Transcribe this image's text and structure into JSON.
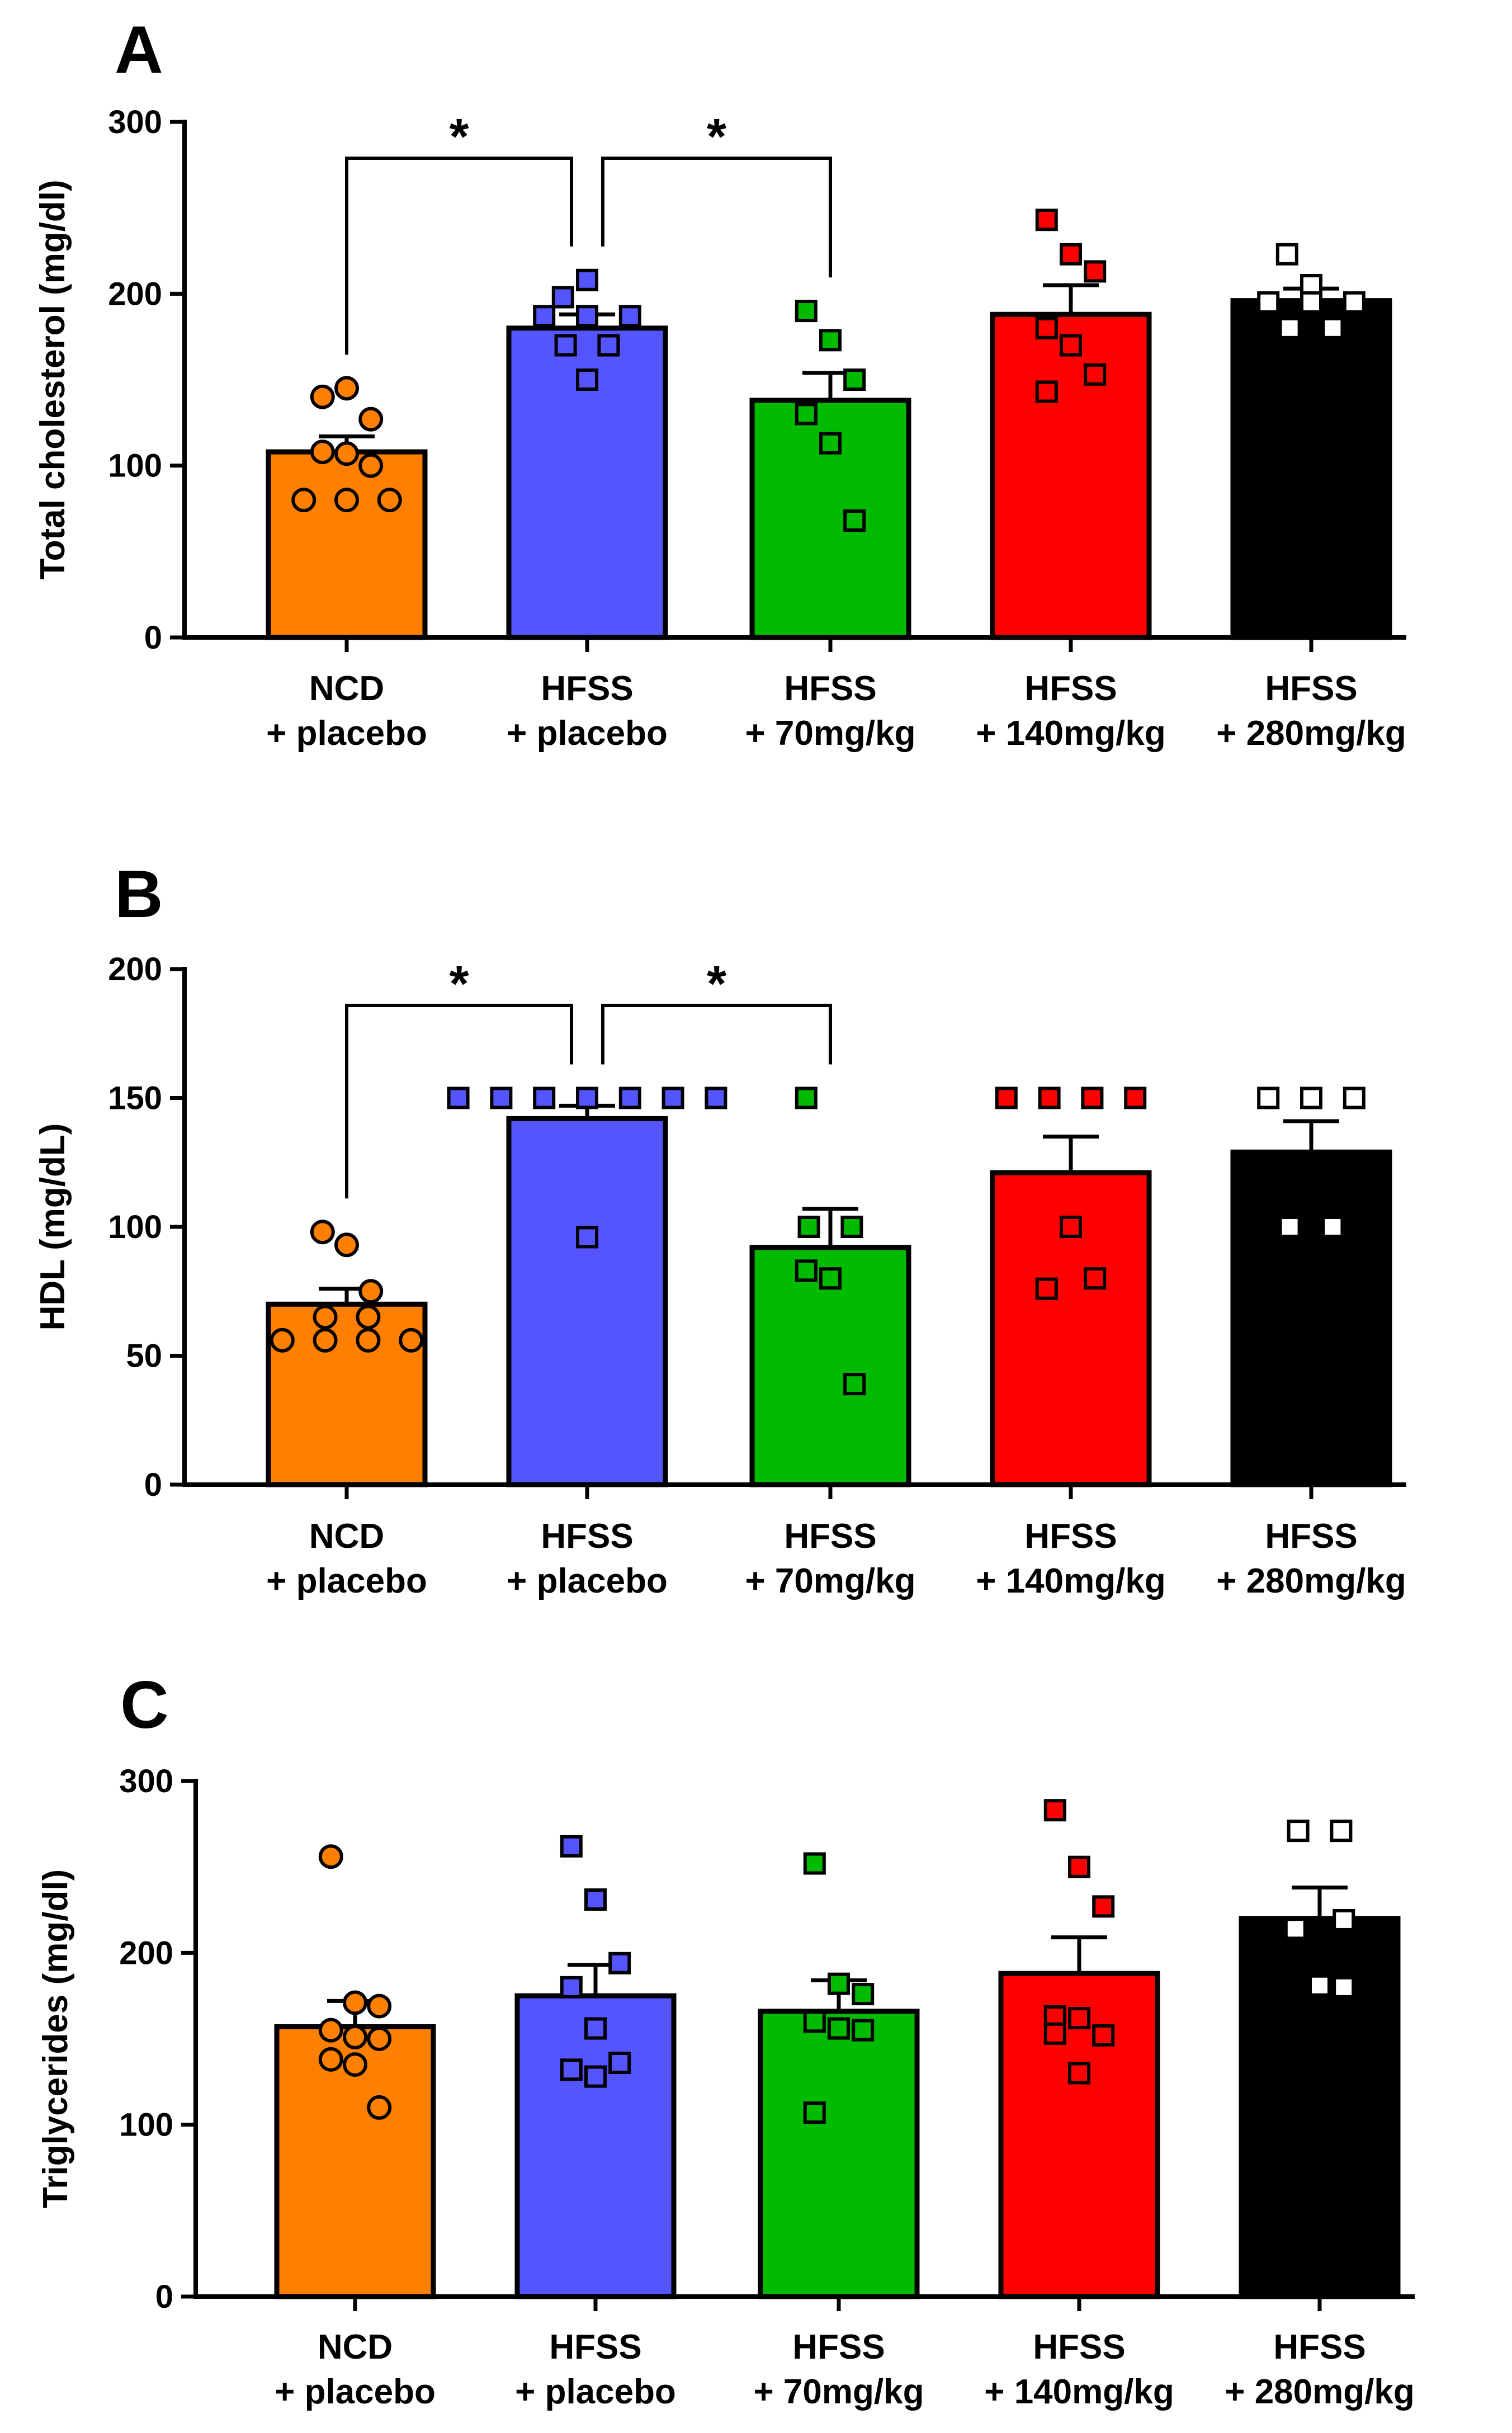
{
  "chart_data": [
    {
      "panel": "A",
      "type": "bar",
      "title": "",
      "ylabel": "Total cholesterol (mg/dl)",
      "xlabel": "",
      "ylim": [
        0,
        300
      ],
      "yticks": [
        "0",
        "100",
        "200",
        "300"
      ],
      "categories": [
        {
          "line1": "NCD",
          "line2": "+ placebo"
        },
        {
          "line1": "HFSS",
          "line2": "+ placebo"
        },
        {
          "line1": "HFSS",
          "line2": "+ 70mg/kg"
        },
        {
          "line1": "HFSS",
          "line2": "+ 140mg/kg"
        },
        {
          "line1": "HFSS",
          "line2": "+ 280mg/kg"
        }
      ],
      "values": [
        108,
        180,
        138,
        188,
        196
      ],
      "sem": [
        9,
        8,
        16,
        17,
        7
      ],
      "points": [
        [
          140,
          145,
          127,
          108,
          107,
          100,
          80,
          80,
          80
        ],
        [
          198,
          208,
          187,
          187,
          187,
          170,
          170,
          150
        ],
        [
          190,
          173,
          150,
          130,
          113,
          68
        ],
        [
          243,
          223,
          213,
          180,
          170,
          153,
          143
        ],
        [
          223,
          205,
          195,
          195,
          195,
          180,
          180
        ]
      ],
      "markers": [
        "circle",
        "square",
        "square",
        "square",
        "square"
      ],
      "significance": [
        {
          "from": 0,
          "to": 1,
          "label": "*"
        },
        {
          "from": 1,
          "to": 2,
          "label": "*"
        }
      ]
    },
    {
      "panel": "B",
      "type": "bar",
      "title": "",
      "ylabel": "HDL (mg/dL)",
      "xlabel": "",
      "ylim": [
        0,
        200
      ],
      "yticks": [
        "0",
        "50",
        "100",
        "150",
        "200"
      ],
      "categories": [
        {
          "line1": "NCD",
          "line2": "+ placebo"
        },
        {
          "line1": "HFSS",
          "line2": "+ placebo"
        },
        {
          "line1": "HFSS",
          "line2": "+ 70mg/kg"
        },
        {
          "line1": "HFSS",
          "line2": "+ 140mg/kg"
        },
        {
          "line1": "HFSS",
          "line2": "+ 280mg/kg"
        }
      ],
      "values": [
        70,
        142,
        92,
        121,
        129
      ],
      "sem": [
        6,
        5,
        15,
        14,
        12
      ],
      "points": [
        [
          98,
          93,
          75,
          65,
          65,
          56,
          56,
          56,
          56
        ],
        [
          150,
          150,
          150,
          150,
          150,
          150,
          150,
          96
        ],
        [
          150,
          100,
          100,
          83,
          80,
          39
        ],
        [
          150,
          150,
          150,
          150,
          100,
          80,
          76
        ],
        [
          150,
          150,
          150,
          100,
          100
        ]
      ],
      "markers": [
        "circle",
        "square",
        "square",
        "square",
        "square"
      ],
      "significance": [
        {
          "from": 0,
          "to": 1,
          "label": "*"
        },
        {
          "from": 1,
          "to": 2,
          "label": "*"
        }
      ]
    },
    {
      "panel": "C",
      "type": "bar",
      "title": "",
      "ylabel": "Triglycerides (mg/dl)",
      "xlabel": "",
      "ylim": [
        0,
        300
      ],
      "yticks": [
        "0",
        "100",
        "200",
        "300"
      ],
      "categories": [
        {
          "line1": "NCD",
          "line2": "+ placebo"
        },
        {
          "line1": "HFSS",
          "line2": "+ placebo"
        },
        {
          "line1": "HFSS",
          "line2": "+ 70mg/kg"
        },
        {
          "line1": "HFSS",
          "line2": "+ 140mg/kg"
        },
        {
          "line1": "HFSS",
          "line2": "+ 280mg/kg"
        }
      ],
      "values": [
        157,
        175,
        166,
        188,
        220
      ],
      "sem": [
        15,
        18,
        18,
        21,
        18
      ],
      "points": [
        [
          256,
          171,
          169,
          155,
          151,
          150,
          138,
          135,
          110
        ],
        [
          262,
          231,
          194,
          180,
          156,
          136,
          132,
          128
        ],
        [
          252,
          182,
          176,
          160,
          156,
          155,
          107
        ],
        [
          283,
          250,
          227,
          163,
          162,
          152,
          153,
          130
        ],
        [
          271,
          271,
          219,
          214,
          181,
          180
        ]
      ],
      "markers": [
        "circle",
        "square",
        "square",
        "square",
        "square"
      ],
      "significance": []
    }
  ],
  "colors": {
    "fills": [
      "#ff8000",
      "#5555ff",
      "#00bb00",
      "#ff0000",
      "#000000"
    ],
    "marker_fills": [
      "#ff8000",
      "#5555ff",
      "#00bb00",
      "#ff0000",
      "#ffffff"
    ],
    "outline": "#000000"
  }
}
